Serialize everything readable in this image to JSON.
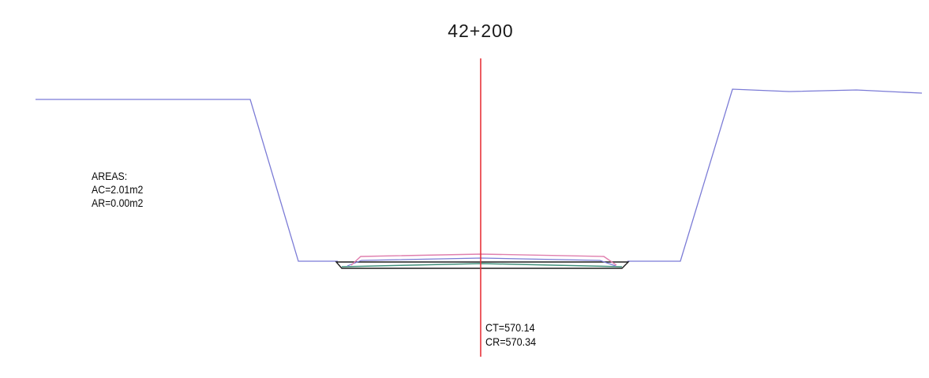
{
  "section": {
    "station": "42+200"
  },
  "areas": {
    "heading": "AREAS:",
    "ac": "AC=2.01m2",
    "ar": "AR=0.00m2"
  },
  "elevations": {
    "ct": "CT=570.14",
    "cr": "CR=570.34"
  },
  "colors": {
    "terrain_line": "#7b7bd6",
    "centerline": "#e8333a",
    "design_subgrade": "#e07fae",
    "pavement_layer": "#3f8f7a",
    "base_outline": "#1e1e1e",
    "text": "#0a0a0a"
  }
}
